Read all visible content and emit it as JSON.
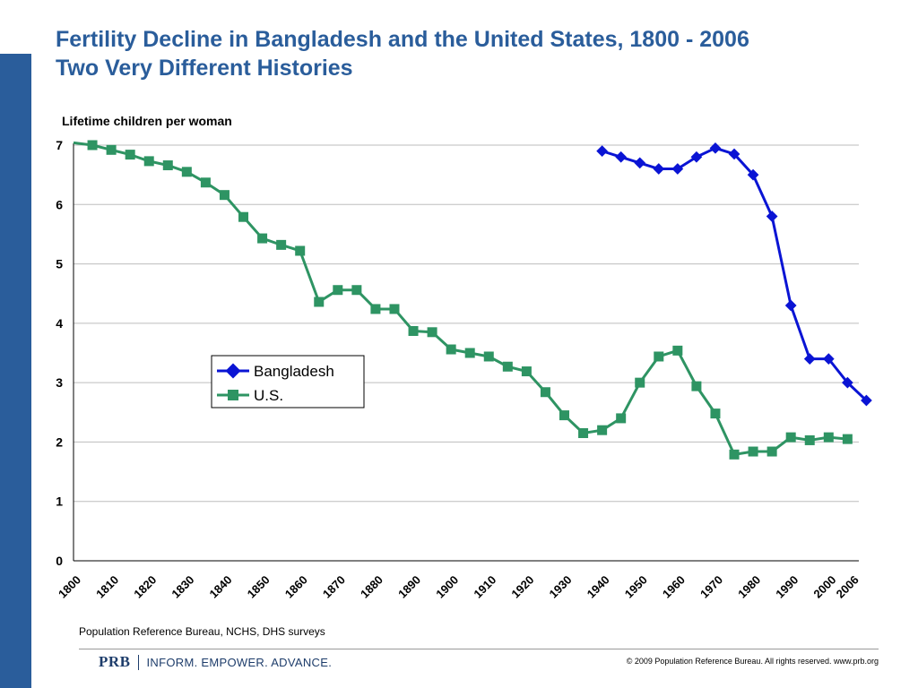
{
  "slide": {
    "title_line1": "Fertility Decline in Bangladesh and the United States, 1800 - 2006",
    "title_line2": "Two Very Different Histories",
    "source": "Population Reference Bureau, NCHS, DHS surveys",
    "brand_logo": "PRB",
    "brand_tagline": "INFORM. EMPOWER. ADVANCE.",
    "copyright": "© 2009 Population Reference Bureau. All rights reserved. www.prb.org",
    "accent_color": "#2a5d9b"
  },
  "chart_data": {
    "type": "line",
    "title": "",
    "ylabel": "Lifetime children per woman",
    "xlabel": "",
    "ylim": [
      0,
      7
    ],
    "yticks": [
      0,
      1,
      2,
      3,
      4,
      5,
      6,
      7
    ],
    "xlim": [
      1800,
      2008
    ],
    "xticks": [
      "1800",
      "1810",
      "1820",
      "1830",
      "1840",
      "1850",
      "1860",
      "1870",
      "1880",
      "1890",
      "1900",
      "1910",
      "1920",
      "1930",
      "1940",
      "1950",
      "1960",
      "1970",
      "1980",
      "1990",
      "2000",
      "2006"
    ],
    "grid": "horizontal",
    "legend": "center-left",
    "series": [
      {
        "name": "Bangladesh",
        "color": "#0a14d4",
        "marker": "diamond",
        "x": [
          1940,
          1945,
          1950,
          1955,
          1960,
          1965,
          1970,
          1975,
          1980,
          1985,
          1990,
          1995,
          2000,
          2005,
          2010
        ],
        "y": [
          6.9,
          6.8,
          6.7,
          6.6,
          6.6,
          6.8,
          6.95,
          6.85,
          6.5,
          5.8,
          4.3,
          3.4,
          3.4,
          3.0,
          2.7
        ]
      },
      {
        "name": "U.S.",
        "color": "#2e9463",
        "marker": "square",
        "x": [
          1800,
          1805,
          1810,
          1815,
          1820,
          1825,
          1830,
          1835,
          1840,
          1845,
          1850,
          1855,
          1860,
          1865,
          1870,
          1875,
          1880,
          1885,
          1890,
          1895,
          1900,
          1905,
          1910,
          1915,
          1920,
          1925,
          1930,
          1935,
          1940,
          1945,
          1950,
          1955,
          1960,
          1965,
          1970,
          1975,
          1980,
          1985,
          1990,
          1995,
          2000,
          2005
        ],
        "y": [
          7.04,
          7.0,
          6.92,
          6.84,
          6.73,
          6.66,
          6.55,
          6.37,
          6.16,
          5.79,
          5.43,
          5.32,
          5.22,
          4.36,
          4.56,
          4.56,
          4.24,
          4.24,
          3.87,
          3.85,
          3.56,
          3.5,
          3.44,
          3.27,
          3.19,
          2.84,
          2.45,
          2.15,
          2.2,
          2.4,
          3.0,
          3.44,
          3.54,
          2.94,
          2.48,
          1.79,
          1.84,
          1.84,
          2.08,
          2.03,
          2.08,
          2.05
        ]
      }
    ]
  }
}
